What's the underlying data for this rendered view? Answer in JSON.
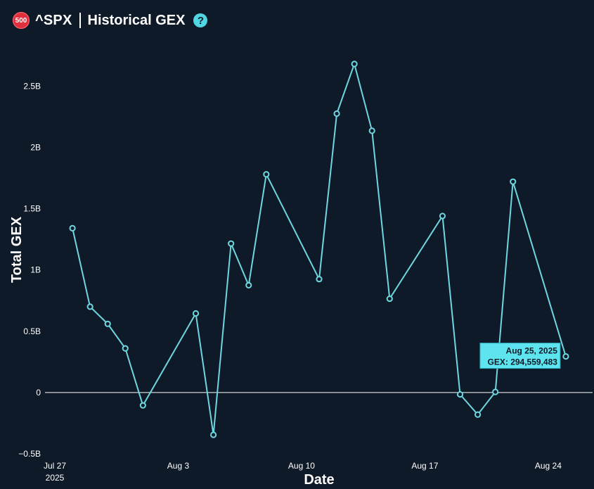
{
  "header": {
    "badge": "500",
    "ticker": "^SPX",
    "title": "Historical GEX",
    "help_glyph": "?"
  },
  "colors": {
    "background": "#0f1a28",
    "line": "#6fd6e0",
    "zero_line": "#ffffff",
    "badge": "#e0303c",
    "tooltip": "#5ee4ee"
  },
  "chart_data": {
    "type": "line",
    "xlabel": "Date",
    "ylabel": "Total GEX",
    "x_ticks": [
      {
        "date": "2025-07-27",
        "label": "Jul 27",
        "sublabel": "2025"
      },
      {
        "date": "2025-08-03",
        "label": "Aug 3",
        "sublabel": ""
      },
      {
        "date": "2025-08-10",
        "label": "Aug 10",
        "sublabel": ""
      },
      {
        "date": "2025-08-17",
        "label": "Aug 17",
        "sublabel": ""
      },
      {
        "date": "2025-08-24",
        "label": "Aug 24",
        "sublabel": ""
      }
    ],
    "y_ticks": [
      {
        "value": -500000000,
        "label": "−0.5B"
      },
      {
        "value": 0,
        "label": "0"
      },
      {
        "value": 500000000,
        "label": "0.5B"
      },
      {
        "value": 1000000000,
        "label": "1B"
      },
      {
        "value": 1500000000,
        "label": "1.5B"
      },
      {
        "value": 2000000000,
        "label": "2B"
      },
      {
        "value": 2500000000,
        "label": "2.5B"
      }
    ],
    "xlim": [
      "2025-07-27",
      "2025-08-26"
    ],
    "ylim": [
      -500000000,
      2800000000
    ],
    "grid": false,
    "zero_line": true,
    "series": [
      {
        "points": [
          {
            "date": "2025-07-28",
            "y": 1340000000
          },
          {
            "date": "2025-07-29",
            "y": 700000000
          },
          {
            "date": "2025-07-30",
            "y": 560000000
          },
          {
            "date": "2025-07-31",
            "y": 360000000
          },
          {
            "date": "2025-08-01",
            "y": -105000000
          },
          {
            "date": "2025-08-04",
            "y": 645000000
          },
          {
            "date": "2025-08-05",
            "y": -345000000
          },
          {
            "date": "2025-08-06",
            "y": 1215000000
          },
          {
            "date": "2025-08-07",
            "y": 875000000
          },
          {
            "date": "2025-08-08",
            "y": 1780000000
          },
          {
            "date": "2025-08-11",
            "y": 925000000
          },
          {
            "date": "2025-08-12",
            "y": 2275000000
          },
          {
            "date": "2025-08-13",
            "y": 2680000000
          },
          {
            "date": "2025-08-14",
            "y": 2135000000
          },
          {
            "date": "2025-08-15",
            "y": 765000000
          },
          {
            "date": "2025-08-18",
            "y": 1440000000
          },
          {
            "date": "2025-08-19",
            "y": -15000000
          },
          {
            "date": "2025-08-20",
            "y": -180000000
          },
          {
            "date": "2025-08-21",
            "y": 5000000
          },
          {
            "date": "2025-08-22",
            "y": 1720000000
          },
          {
            "date": "2025-08-25",
            "y": 294559483
          }
        ]
      }
    ],
    "tooltip": {
      "date": "2025-08-25",
      "line1": "Aug 25, 2025",
      "line2": "GEX: 294,559,483"
    }
  }
}
